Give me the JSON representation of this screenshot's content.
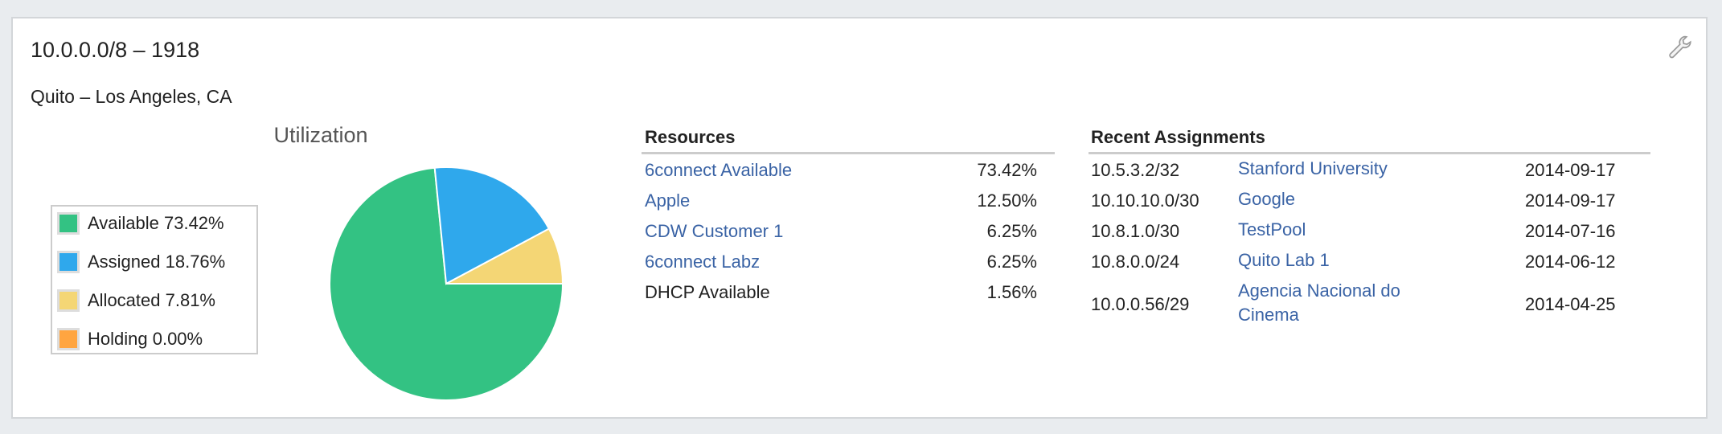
{
  "card": {
    "title": "10.0.0.0/8 – 1918",
    "subtitle": "Quito – Los Angeles, CA",
    "settings_icon": "wrench-icon"
  },
  "chart_data": {
    "type": "pie",
    "title": "Utilization",
    "legend_position": "left",
    "slices": [
      {
        "name": "Available",
        "value": 73.42,
        "label": "Available 73.42%",
        "color": "#33c283"
      },
      {
        "name": "Assigned",
        "value": 18.76,
        "label": "Assigned 18.76%",
        "color": "#2fa8ec"
      },
      {
        "name": "Allocated",
        "value": 7.81,
        "label": "Allocated 7.81%",
        "color": "#f4d675"
      },
      {
        "name": "Holding",
        "value": 0.0,
        "label": "Holding 0.00%",
        "color": "#ffa540"
      }
    ]
  },
  "resources": {
    "header": "Resources",
    "rows": [
      {
        "name": "6connect Available",
        "percent": "73.42%",
        "link": true
      },
      {
        "name": "Apple",
        "percent": "12.50%",
        "link": true
      },
      {
        "name": "CDW Customer 1",
        "percent": "6.25%",
        "link": true
      },
      {
        "name": "6connect Labz",
        "percent": "6.25%",
        "link": true
      },
      {
        "name": "DHCP Available",
        "percent": "1.56%",
        "link": false
      }
    ]
  },
  "recent": {
    "header": "Recent Assignments",
    "rows": [
      {
        "block": "10.5.3.2/32",
        "name": "Stanford University",
        "date": "2014-09-17"
      },
      {
        "block": "10.10.10.0/30",
        "name": "Google",
        "date": "2014-09-17"
      },
      {
        "block": "10.8.1.0/30",
        "name": "TestPool",
        "date": "2014-07-16"
      },
      {
        "block": "10.8.0.0/24",
        "name": "Quito Lab 1",
        "date": "2014-06-12"
      },
      {
        "block": "10.0.0.56/29",
        "name": "Agencia Nacional do Cinema",
        "date": "2014-04-25"
      }
    ]
  },
  "colors": {
    "link": "#3a63a5",
    "background": "#e9ecef"
  }
}
